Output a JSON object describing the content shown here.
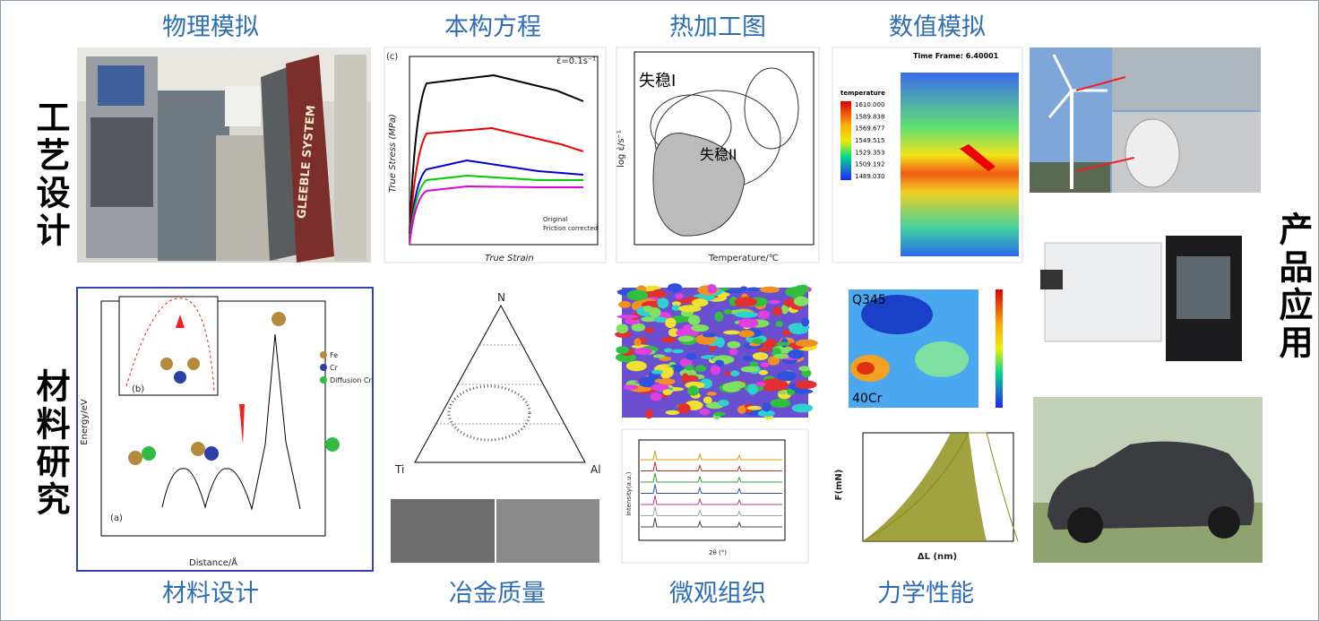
{
  "top_labels": [
    "物理模拟",
    "本构方程",
    "热加工图",
    "数值模拟"
  ],
  "bottom_labels": [
    "材料设计",
    "冶金质量",
    "微观组织",
    "力学性能"
  ],
  "side_labels": {
    "left": [
      "工艺设计",
      "材料研究"
    ],
    "right": "产品应用"
  },
  "panels": {
    "gleeble": {
      "brand": "GLEEBLE SYSTEM"
    },
    "constitutive": {
      "panel": "(c)",
      "rate": "ε̇=0.1s⁻¹",
      "x_label": "True Strain",
      "y_label": "True Stress (MPa)",
      "legend": [
        "Original",
        "Friction corrected"
      ]
    },
    "processing_map": {
      "zone1": "失稳I",
      "zone2": "失稳II",
      "x_label": "Temperature/℃",
      "y_label": "log ε̇/s⁻¹"
    },
    "simulation": {
      "time": "Time Frame:  6.40001",
      "legend_title": "temperature",
      "legend_values": [
        "1610.000",
        "1589.838",
        "1569.677",
        "1549.515",
        "1529.353",
        "1509.192",
        "1489.030"
      ]
    },
    "energy": {
      "y_label": "Energy/eV",
      "x_label": "Distance/Å",
      "panel_a": "(a)",
      "panel_b": "(b)",
      "legend": [
        "Fe",
        "Cr",
        "Diffusion Cr"
      ]
    },
    "ternary": {
      "top": "N",
      "left": "Ti",
      "right": "Al"
    },
    "contour": {
      "top": "Q345",
      "bottom": "40Cr"
    },
    "xrd": {
      "x_label": "2θ (°)",
      "y_label": "Intensity(a.u.)"
    },
    "indent": {
      "y_label": "F(mN)",
      "x_label": "ΔL (nm)"
    }
  }
}
